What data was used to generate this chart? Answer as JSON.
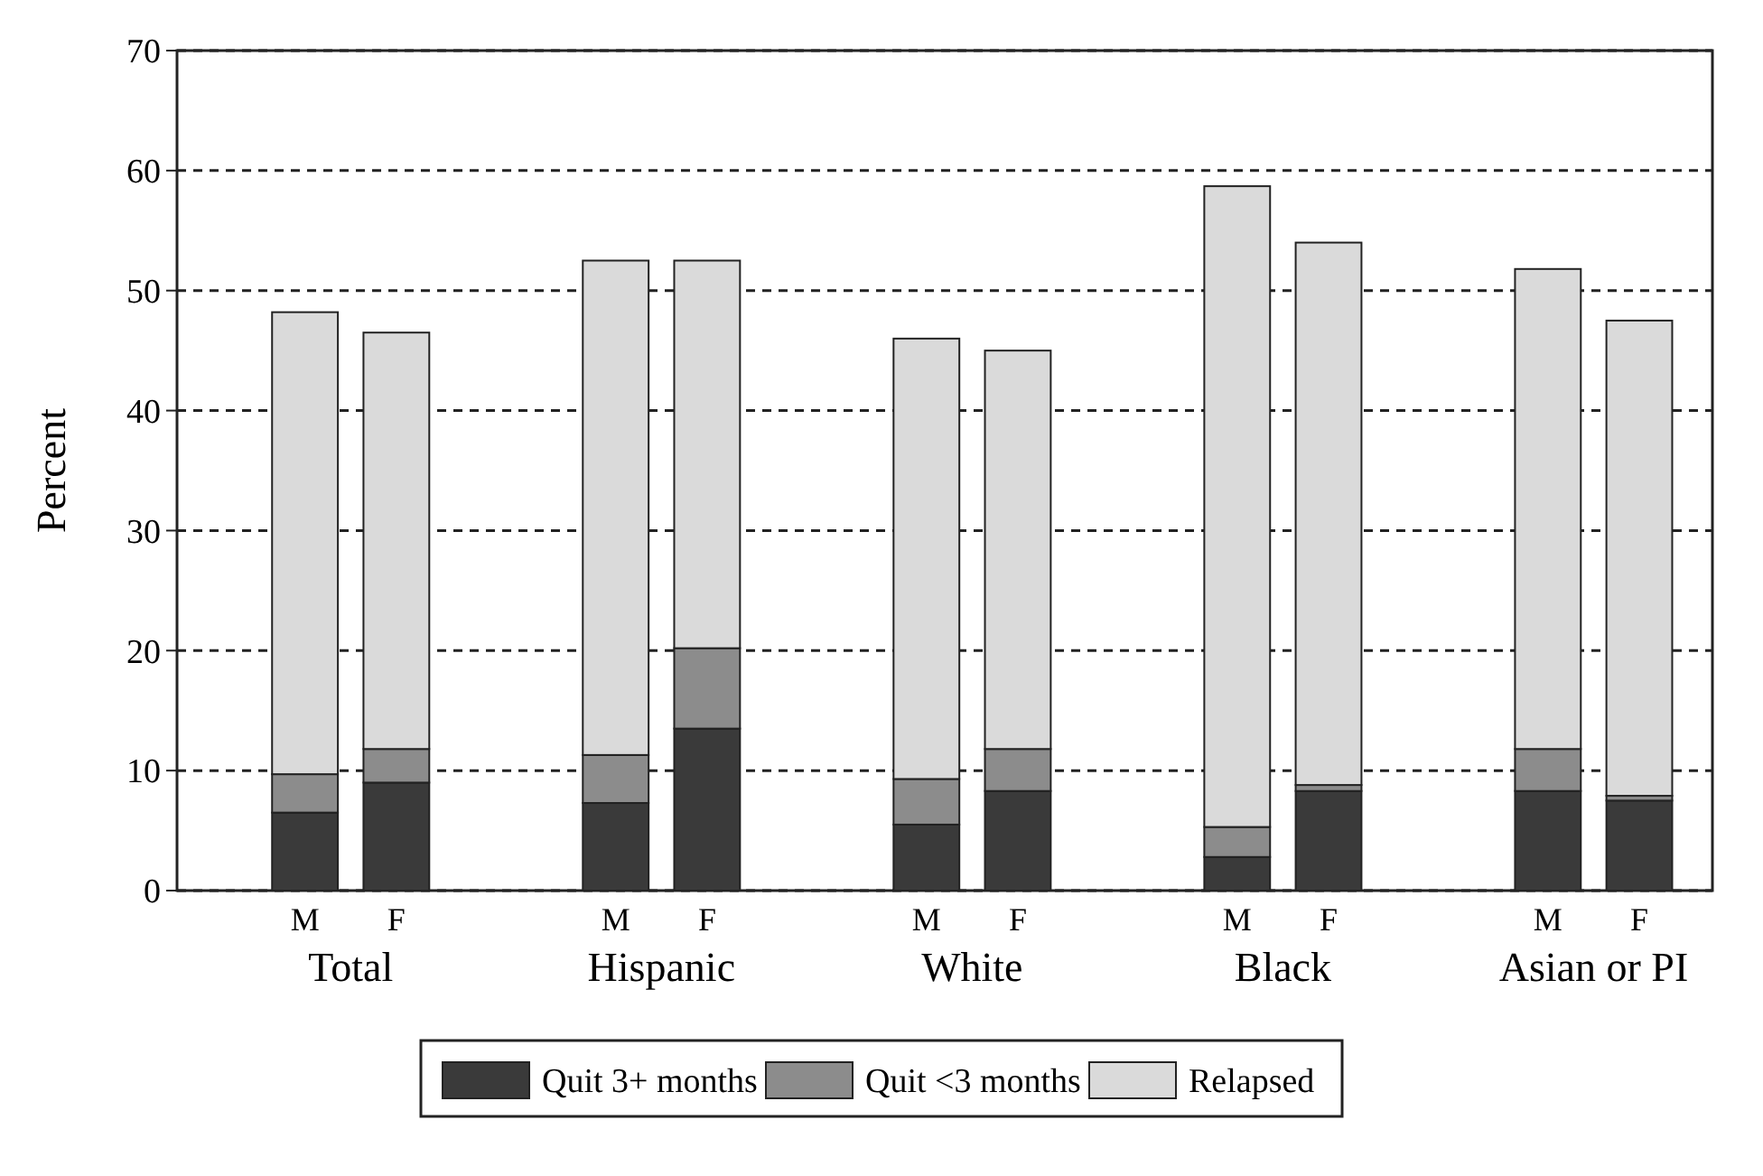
{
  "chart_data": {
    "type": "bar",
    "stacked": true,
    "ylabel": "Percent",
    "categories": [
      "M",
      "F",
      "M",
      "F",
      "M",
      "F",
      "M",
      "F",
      "M",
      "F"
    ],
    "annotations": [
      "Total",
      "Hispanic",
      "White",
      "Black",
      "Asian or PI"
    ],
    "series": [
      {
        "name": "Quit 3+ months",
        "color": "#3a3a3a",
        "values": [
          6.5,
          9,
          7.3,
          13.5,
          5.5,
          8.3,
          2.8,
          8.3,
          8.3,
          7.5
        ]
      },
      {
        "name": "Quit <3 months",
        "color": "#8c8c8c",
        "values": [
          3.2,
          2.8,
          4,
          6.7,
          3.8,
          3.5,
          2.5,
          0.5,
          3.5,
          0.4
        ]
      },
      {
        "name": "Relapsed",
        "color": "#dadada",
        "values": [
          38.5,
          34.7,
          41.2,
          32.3,
          36.7,
          33.2,
          53.4,
          45.2,
          40,
          39.6
        ]
      }
    ],
    "ylim": [
      0,
      70
    ],
    "yticks": [
      0,
      10,
      20,
      30,
      40,
      50,
      60,
      70
    ],
    "grid": "y",
    "legend": "bottom"
  }
}
